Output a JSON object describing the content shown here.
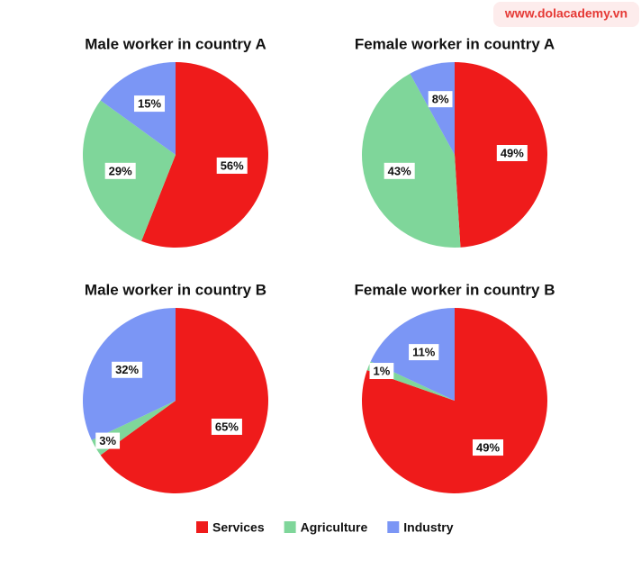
{
  "watermark": "www.dolacademy.vn",
  "chart_data": [
    {
      "type": "pie",
      "title": "Male worker in country A",
      "categories": [
        "Services",
        "Agriculture",
        "Industry"
      ],
      "values": [
        56,
        29,
        15
      ],
      "value_labels": [
        "56%",
        "29%",
        "15%"
      ],
      "colors": [
        "#ef1b1b",
        "#7fd69a",
        "#7b96f5"
      ]
    },
    {
      "type": "pie",
      "title": "Female worker in country A",
      "categories": [
        "Services",
        "Agriculture",
        "Industry"
      ],
      "values": [
        49,
        43,
        8
      ],
      "value_labels": [
        "49%",
        "43%",
        "8%"
      ],
      "colors": [
        "#ef1b1b",
        "#7fd69a",
        "#7b96f5"
      ]
    },
    {
      "type": "pie",
      "title": "Male worker in country B",
      "categories": [
        "Services",
        "Agriculture",
        "Industry"
      ],
      "values": [
        65,
        3,
        32
      ],
      "value_labels": [
        "65%",
        "3%",
        "32%"
      ],
      "colors": [
        "#ef1b1b",
        "#7fd69a",
        "#7b96f5"
      ]
    },
    {
      "type": "pie",
      "title": "Female worker in country B",
      "categories": [
        "Services",
        "Agriculture",
        "Industry"
      ],
      "values": [
        49,
        1,
        11
      ],
      "value_labels": [
        "49%",
        "1%",
        "11%"
      ],
      "colors": [
        "#ef1b1b",
        "#7fd69a",
        "#7b96f5"
      ]
    }
  ]
}
